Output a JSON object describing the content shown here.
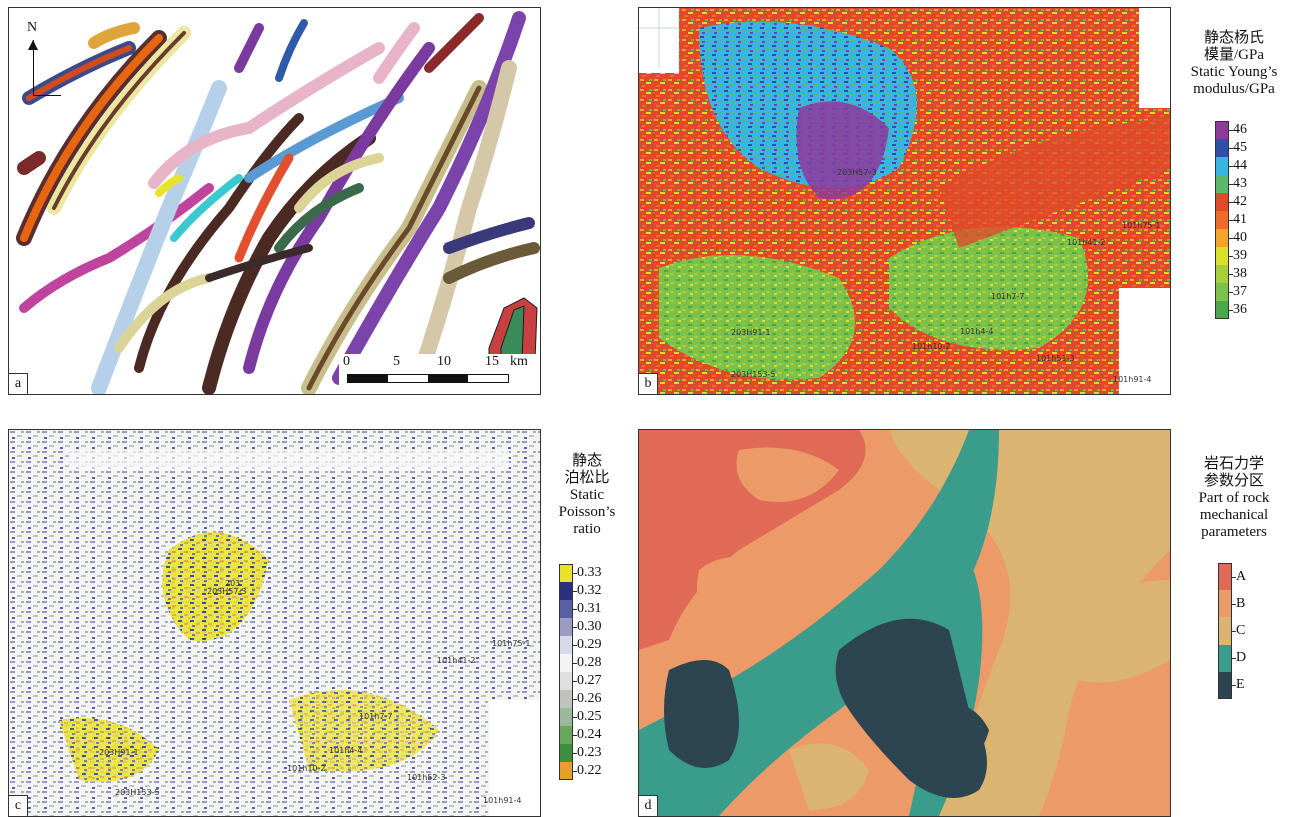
{
  "panels": {
    "a": {
      "label": "a",
      "north": "N",
      "scale": {
        "ticks": [
          "0",
          "5",
          "10",
          "15"
        ],
        "unit": "km"
      }
    },
    "b": {
      "label": "b",
      "legend_title_cn_1": "静态杨氏",
      "legend_title_cn_2": "模量/GPa",
      "legend_title_en_1": "Static Young’s",
      "legend_title_en_2": "modulus/GPa",
      "ticks": [
        "46",
        "45",
        "44",
        "43",
        "42",
        "41",
        "40",
        "39",
        "38",
        "37",
        "36"
      ],
      "colors": [
        "#8e3a9c",
        "#2e4fa8",
        "#37b6e4",
        "#5cb86a",
        "#e04a2a",
        "#f06a2a",
        "#f4a52a",
        "#d9e02c",
        "#a8cf3a",
        "#7dc04a",
        "#4aa84a"
      ],
      "wells": [
        "203H57-3",
        "101h75-1",
        "101h41-2",
        "101h7-7",
        "203H91-1",
        "101h10-2",
        "101h4-4",
        "101h51-3",
        "203H153-5",
        "101h91-4"
      ]
    },
    "c": {
      "label": "c",
      "legend_title_cn_1": "静态",
      "legend_title_cn_2": "泊松比",
      "legend_title_en_1": "Static",
      "legend_title_en_2": "Poisson’s",
      "legend_title_en_3": "ratio",
      "ticks": [
        "0.33",
        "0.32",
        "0.31",
        "0.30",
        "0.29",
        "0.28",
        "0.27",
        "0.26",
        "0.25",
        "0.24",
        "0.23",
        "0.22"
      ],
      "colors": [
        "#e8e22a",
        "#2c2f7e",
        "#5a5fa0",
        "#9a9cc4",
        "#d8d8e8",
        "#f4f4f4",
        "#e0e0e0",
        "#bfc2bf",
        "#9cb89a",
        "#6aa65e",
        "#3f8e3c",
        "#e5a02a"
      ],
      "wells": [
        "203",
        "203H57-3",
        "101h75-1",
        "101h41-2",
        "101h7-7",
        "203H91-1",
        "101h4-4",
        "101h10-2",
        "101h52-3",
        "203H153-5",
        "101h91-4"
      ]
    },
    "d": {
      "label": "d",
      "legend_title_cn_1": "岩石力学",
      "legend_title_cn_2": "参数分区",
      "legend_title_en_1": "Part of rock",
      "legend_title_en_2": "mechanical",
      "legend_title_en_3": "parameters",
      "classes": [
        "A",
        "B",
        "C",
        "D",
        "E"
      ],
      "colors": [
        "#e06a55",
        "#ec9a68",
        "#dcb471",
        "#3a9c8a",
        "#2c4550"
      ]
    }
  }
}
